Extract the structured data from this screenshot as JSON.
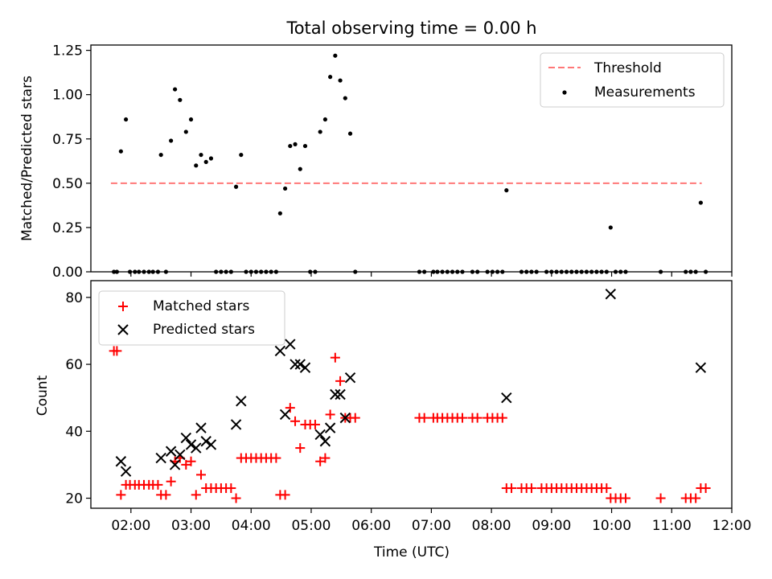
{
  "chart_data": [
    {
      "type": "scatter",
      "title": "Total observing time = 0.00 h",
      "ylabel": "Matched/Predicted stars",
      "xlabel": "",
      "xlim": [
        "01:20",
        "12:00"
      ],
      "ylim": [
        0,
        1.28
      ],
      "yticks": [
        "0.00",
        "0.25",
        "0.50",
        "0.75",
        "1.00",
        "1.25"
      ],
      "legend_position": "top-right",
      "threshold": {
        "name": "Threshold",
        "value": 0.5,
        "x_start": "01:40",
        "x_end": "11:30",
        "color": "#ff7777",
        "style": "dashed"
      },
      "series": [
        {
          "name": "Measurements",
          "color": "#000000",
          "marker": "dot",
          "points": [
            [
              "01:43",
              0
            ],
            [
              "01:46",
              0
            ],
            [
              "01:50",
              0.68
            ],
            [
              "01:55",
              0.86
            ],
            [
              "01:59",
              0
            ],
            [
              "02:04",
              0
            ],
            [
              "02:08",
              0
            ],
            [
              "02:13",
              0
            ],
            [
              "02:18",
              0
            ],
            [
              "02:22",
              0
            ],
            [
              "02:27",
              0
            ],
            [
              "02:30",
              0.66
            ],
            [
              "02:35",
              0
            ],
            [
              "02:40",
              0.74
            ],
            [
              "02:44",
              1.03
            ],
            [
              "02:49",
              0.97
            ],
            [
              "02:55",
              0.79
            ],
            [
              "03:00",
              0.86
            ],
            [
              "03:05",
              0.6
            ],
            [
              "03:10",
              0.66
            ],
            [
              "03:15",
              0.62
            ],
            [
              "03:20",
              0.64
            ],
            [
              "03:25",
              0
            ],
            [
              "03:30",
              0
            ],
            [
              "03:35",
              0
            ],
            [
              "03:40",
              0
            ],
            [
              "03:45",
              0.48
            ],
            [
              "03:50",
              0.66
            ],
            [
              "03:55",
              0
            ],
            [
              "04:00",
              0
            ],
            [
              "04:05",
              0
            ],
            [
              "04:10",
              0
            ],
            [
              "04:15",
              0
            ],
            [
              "04:20",
              0
            ],
            [
              "04:25",
              0
            ],
            [
              "04:29",
              0.33
            ],
            [
              "04:34",
              0.47
            ],
            [
              "04:39",
              0.71
            ],
            [
              "04:44",
              0.72
            ],
            [
              "04:49",
              0.58
            ],
            [
              "04:54",
              0.71
            ],
            [
              "04:59",
              0
            ],
            [
              "05:04",
              0
            ],
            [
              "05:09",
              0.79
            ],
            [
              "05:14",
              0.86
            ],
            [
              "05:19",
              1.1
            ],
            [
              "05:24",
              1.22
            ],
            [
              "05:29",
              1.08
            ],
            [
              "05:34",
              0.98
            ],
            [
              "05:39",
              0.78
            ],
            [
              "05:44",
              0
            ],
            [
              "06:48",
              0
            ],
            [
              "06:53",
              0
            ],
            [
              "07:02",
              0
            ],
            [
              "07:06",
              0
            ],
            [
              "07:11",
              0
            ],
            [
              "07:16",
              0
            ],
            [
              "07:21",
              0
            ],
            [
              "07:26",
              0
            ],
            [
              "07:31",
              0
            ],
            [
              "07:41",
              0
            ],
            [
              "07:46",
              0
            ],
            [
              "07:56",
              0
            ],
            [
              "08:01",
              0
            ],
            [
              "08:06",
              0
            ],
            [
              "08:11",
              0
            ],
            [
              "08:15",
              0.46
            ],
            [
              "08:30",
              0
            ],
            [
              "08:35",
              0
            ],
            [
              "08:40",
              0
            ],
            [
              "08:45",
              0
            ],
            [
              "08:55",
              0
            ],
            [
              "09:00",
              0
            ],
            [
              "09:05",
              0
            ],
            [
              "09:10",
              0
            ],
            [
              "09:15",
              0
            ],
            [
              "09:20",
              0
            ],
            [
              "09:25",
              0
            ],
            [
              "09:30",
              0
            ],
            [
              "09:35",
              0
            ],
            [
              "09:40",
              0
            ],
            [
              "09:45",
              0
            ],
            [
              "09:50",
              0
            ],
            [
              "09:55",
              0
            ],
            [
              "09:59",
              0.25
            ],
            [
              "10:04",
              0
            ],
            [
              "10:09",
              0
            ],
            [
              "10:14",
              0
            ],
            [
              "10:49",
              0
            ],
            [
              "11:14",
              0
            ],
            [
              "11:19",
              0
            ],
            [
              "11:24",
              0
            ],
            [
              "11:29",
              0.39
            ],
            [
              "11:34",
              0
            ]
          ]
        }
      ]
    },
    {
      "type": "scatter",
      "title": "",
      "xlabel": "Time (UTC)",
      "ylabel": "Count",
      "xlim": [
        "01:20",
        "12:00"
      ],
      "ylim": [
        17,
        85
      ],
      "xticks": [
        "02:00",
        "03:00",
        "04:00",
        "05:00",
        "06:00",
        "07:00",
        "08:00",
        "09:00",
        "10:00",
        "11:00",
        "12:00"
      ],
      "yticks": [
        "20",
        "40",
        "60",
        "80"
      ],
      "legend_position": "top-left",
      "series": [
        {
          "name": "Matched stars",
          "color": "#ff0000",
          "marker": "plus",
          "points": [
            [
              "01:43",
              64
            ],
            [
              "01:46",
              64
            ],
            [
              "01:50",
              21
            ],
            [
              "01:55",
              24
            ],
            [
              "01:59",
              24
            ],
            [
              "02:04",
              24
            ],
            [
              "02:08",
              24
            ],
            [
              "02:13",
              24
            ],
            [
              "02:18",
              24
            ],
            [
              "02:22",
              24
            ],
            [
              "02:27",
              24
            ],
            [
              "02:30",
              21
            ],
            [
              "02:35",
              21
            ],
            [
              "02:40",
              25
            ],
            [
              "02:44",
              31
            ],
            [
              "02:49",
              32
            ],
            [
              "02:55",
              30
            ],
            [
              "03:00",
              31
            ],
            [
              "03:05",
              21
            ],
            [
              "03:10",
              27
            ],
            [
              "03:15",
              23
            ],
            [
              "03:20",
              23
            ],
            [
              "03:25",
              23
            ],
            [
              "03:30",
              23
            ],
            [
              "03:35",
              23
            ],
            [
              "03:40",
              23
            ],
            [
              "03:45",
              20
            ],
            [
              "03:50",
              32
            ],
            [
              "03:55",
              32
            ],
            [
              "04:00",
              32
            ],
            [
              "04:05",
              32
            ],
            [
              "04:10",
              32
            ],
            [
              "04:15",
              32
            ],
            [
              "04:20",
              32
            ],
            [
              "04:25",
              32
            ],
            [
              "04:29",
              21
            ],
            [
              "04:34",
              21
            ],
            [
              "04:39",
              47
            ],
            [
              "04:44",
              43
            ],
            [
              "04:49",
              35
            ],
            [
              "04:54",
              42
            ],
            [
              "04:59",
              42
            ],
            [
              "05:04",
              42
            ],
            [
              "05:09",
              31
            ],
            [
              "05:14",
              32
            ],
            [
              "05:19",
              45
            ],
            [
              "05:24",
              62
            ],
            [
              "05:29",
              55
            ],
            [
              "05:34",
              44
            ],
            [
              "05:39",
              44
            ],
            [
              "05:44",
              44
            ],
            [
              "06:48",
              44
            ],
            [
              "06:53",
              44
            ],
            [
              "07:02",
              44
            ],
            [
              "07:06",
              44
            ],
            [
              "07:11",
              44
            ],
            [
              "07:16",
              44
            ],
            [
              "07:21",
              44
            ],
            [
              "07:26",
              44
            ],
            [
              "07:31",
              44
            ],
            [
              "07:41",
              44
            ],
            [
              "07:46",
              44
            ],
            [
              "07:56",
              44
            ],
            [
              "08:01",
              44
            ],
            [
              "08:06",
              44
            ],
            [
              "08:11",
              44
            ],
            [
              "08:15",
              23
            ],
            [
              "08:20",
              23
            ],
            [
              "08:30",
              23
            ],
            [
              "08:35",
              23
            ],
            [
              "08:40",
              23
            ],
            [
              "08:50",
              23
            ],
            [
              "08:55",
              23
            ],
            [
              "09:00",
              23
            ],
            [
              "09:05",
              23
            ],
            [
              "09:10",
              23
            ],
            [
              "09:15",
              23
            ],
            [
              "09:20",
              23
            ],
            [
              "09:25",
              23
            ],
            [
              "09:30",
              23
            ],
            [
              "09:35",
              23
            ],
            [
              "09:40",
              23
            ],
            [
              "09:45",
              23
            ],
            [
              "09:50",
              23
            ],
            [
              "09:55",
              23
            ],
            [
              "09:59",
              20
            ],
            [
              "10:04",
              20
            ],
            [
              "10:09",
              20
            ],
            [
              "10:14",
              20
            ],
            [
              "10:49",
              20
            ],
            [
              "11:14",
              20
            ],
            [
              "11:19",
              20
            ],
            [
              "11:24",
              20
            ],
            [
              "11:29",
              23
            ],
            [
              "11:34",
              23
            ]
          ]
        },
        {
          "name": "Predicted stars",
          "color": "#000000",
          "marker": "x",
          "points": [
            [
              "01:50",
              31
            ],
            [
              "01:55",
              28
            ],
            [
              "02:30",
              32
            ],
            [
              "02:40",
              34
            ],
            [
              "02:44",
              30
            ],
            [
              "02:49",
              33
            ],
            [
              "02:55",
              38
            ],
            [
              "03:00",
              36
            ],
            [
              "03:05",
              35
            ],
            [
              "03:10",
              41
            ],
            [
              "03:15",
              37
            ],
            [
              "03:20",
              36
            ],
            [
              "03:45",
              42
            ],
            [
              "03:50",
              49
            ],
            [
              "04:29",
              64
            ],
            [
              "04:34",
              45
            ],
            [
              "04:39",
              66
            ],
            [
              "04:44",
              60
            ],
            [
              "04:49",
              60
            ],
            [
              "04:54",
              59
            ],
            [
              "05:09",
              39
            ],
            [
              "05:14",
              37
            ],
            [
              "05:19",
              41
            ],
            [
              "05:24",
              51
            ],
            [
              "05:29",
              51
            ],
            [
              "05:34",
              44
            ],
            [
              "05:39",
              56
            ],
            [
              "08:15",
              50
            ],
            [
              "09:59",
              81
            ],
            [
              "11:29",
              59
            ]
          ]
        }
      ]
    }
  ]
}
